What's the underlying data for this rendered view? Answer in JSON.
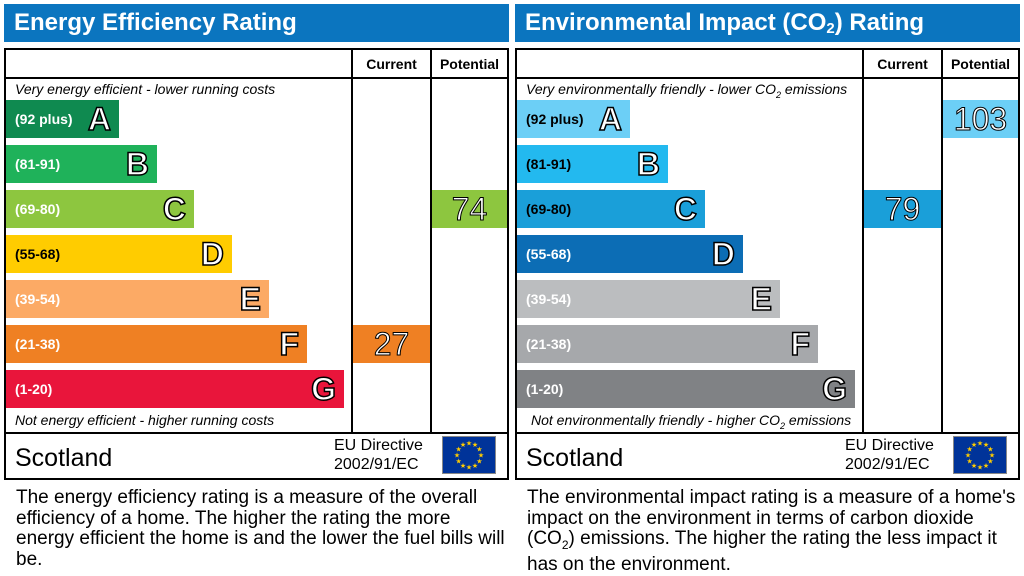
{
  "energy": {
    "title": "Energy Efficiency Rating",
    "col_current": "Current",
    "col_potential": "Potential",
    "top_caption": "Very energy efficient - lower running costs",
    "bottom_caption": "Not energy efficient - higher running costs",
    "region": "Scotland",
    "directive_line1": "EU Directive",
    "directive_line2": "2002/91/EC",
    "description": "The energy efficiency rating is a measure of the overall efficiency of a home. The higher the rating the more energy efficient the home is and the lower the fuel bills will be.",
    "current_value": "27",
    "potential_value": "74",
    "colors": {
      "A": "#0f8a50",
      "B": "#1fb25a",
      "C": "#8dc63f",
      "D": "#ffcc00",
      "E": "#fcaa65",
      "F": "#ef8023",
      "G": "#e9153b"
    }
  },
  "environment": {
    "title_pre": "Environmental Impact (CO",
    "title_sub": "2",
    "title_post": ") Rating",
    "col_current": "Current",
    "col_potential": "Potential",
    "top_caption_pre": "Very environmentally friendly - lower CO",
    "top_caption_sub": "2",
    "top_caption_post": " emissions",
    "bottom_caption_pre": "Not environmentally friendly - higher CO",
    "bottom_caption_sub": "2",
    "bottom_caption_post": " emissions",
    "region": "Scotland",
    "directive_line1": "EU Directive",
    "directive_line2": "2002/91/EC",
    "description_pre": "The environmental impact rating is a measure of a home's impact on the environment in terms of carbon dioxide (CO",
    "description_sub": "2",
    "description_post": ") emissions. The higher the rating the less impact it has on the environment.",
    "current_value": "79",
    "potential_value": "103",
    "colors": {
      "A": "#6ccff6",
      "B": "#23b9ef",
      "C": "#1a9fd9",
      "D": "#0c6db5",
      "E": "#bbbdbf",
      "F": "#a6a8ab",
      "G": "#808285"
    }
  },
  "chart_data": {
    "type": "bar",
    "categories": [
      "A",
      "B",
      "C",
      "D",
      "E",
      "F",
      "G"
    ],
    "ranges": [
      "(92 plus)",
      "(81-91)",
      "(69-80)",
      "(55-68)",
      "(39-54)",
      "(21-38)",
      "(1-20)"
    ],
    "band_min": [
      92,
      81,
      69,
      55,
      39,
      21,
      1
    ],
    "energy": {
      "current": 27,
      "potential": 74
    },
    "environment": {
      "current": 79,
      "potential": 103
    }
  }
}
